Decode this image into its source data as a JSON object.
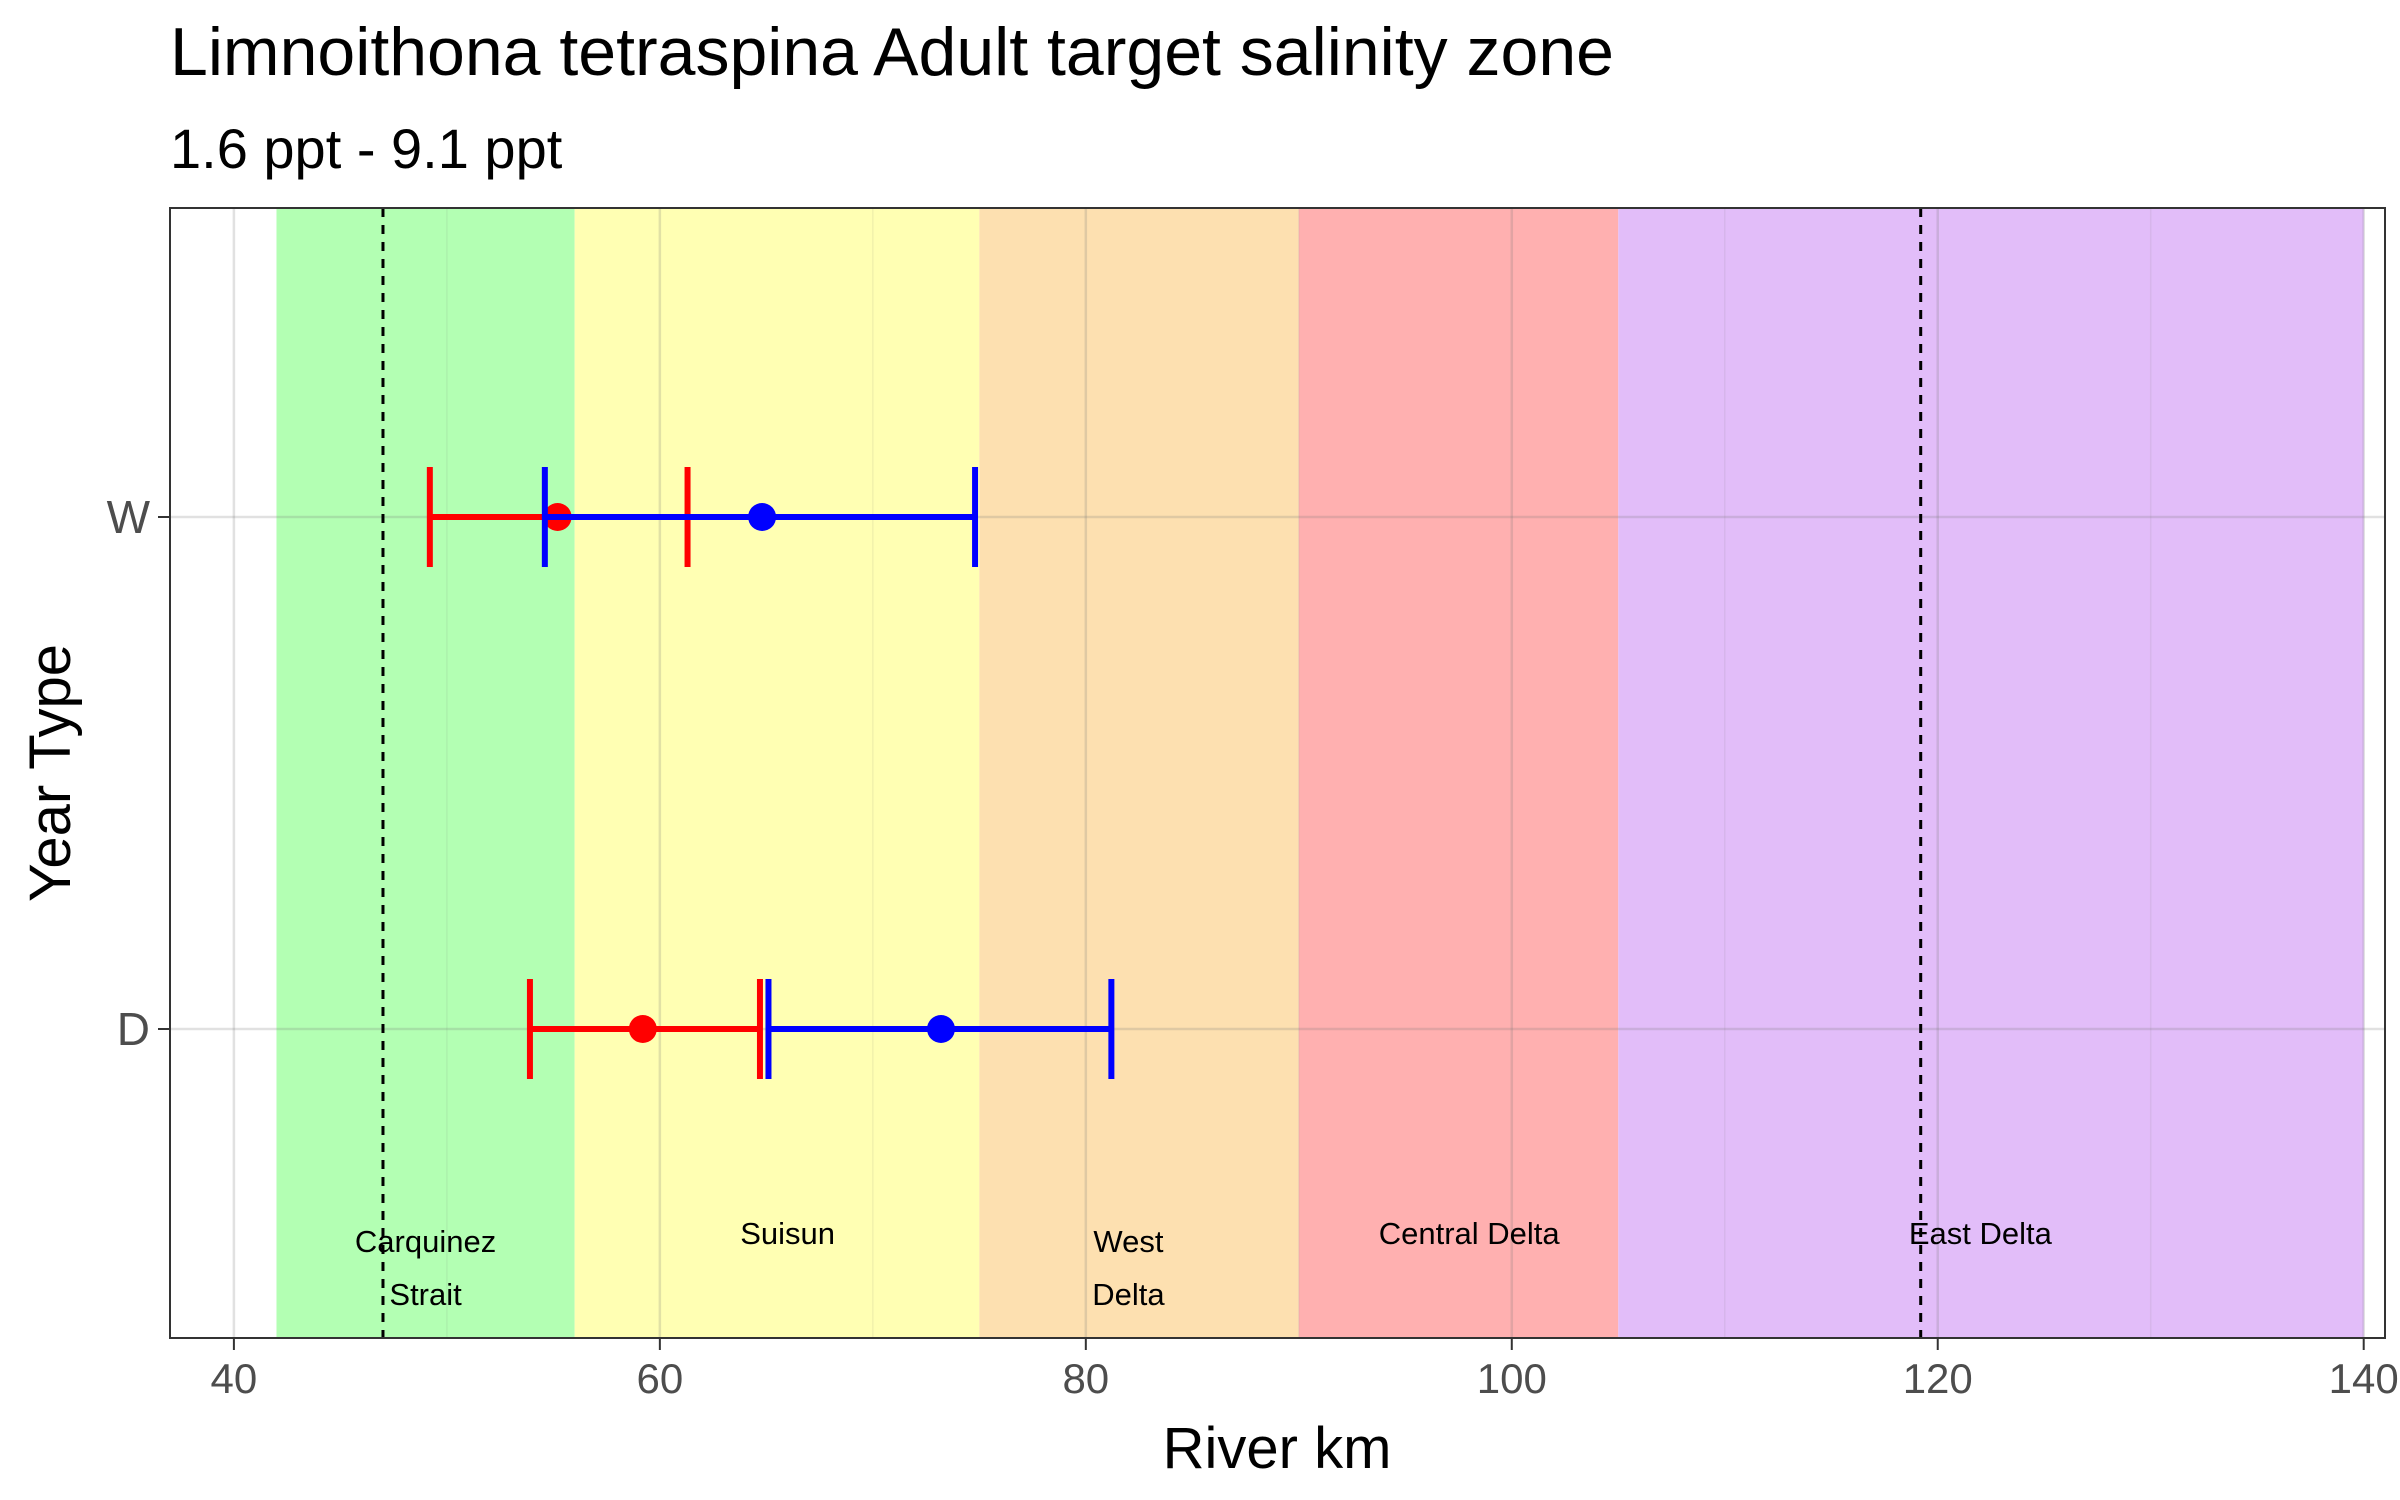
{
  "chart_data": {
    "type": "scatter",
    "title": "Limnoithona tetraspina Adult  target salinity zone",
    "subtitle": "1.6 ppt - 9.1 ppt",
    "xlabel": "River km",
    "ylabel": "Year Type",
    "xlim": [
      37,
      141
    ],
    "x_ticks": [
      40,
      60,
      80,
      100,
      120,
      140
    ],
    "y_categories": [
      "W",
      "D"
    ],
    "grid": true,
    "regions": [
      {
        "name": "Carquinez Strait",
        "label_lines": [
          "Carquinez",
          "Strait"
        ],
        "x_from": 42,
        "x_to": 56,
        "color": "#b3ffb3",
        "label_x": 49
      },
      {
        "name": "Suisun",
        "label_lines": [
          "Suisun"
        ],
        "x_from": 56,
        "x_to": 75,
        "color": "#ffffb3",
        "label_x": 66
      },
      {
        "name": "West Delta",
        "label_lines": [
          "West",
          "Delta"
        ],
        "x_from": 75,
        "x_to": 90,
        "color": "#fde0b0",
        "label_x": 82
      },
      {
        "name": "Central Delta",
        "label_lines": [
          "Central Delta"
        ],
        "x_from": 90,
        "x_to": 105,
        "color": "#ffb0b0",
        "label_x": 98
      },
      {
        "name": "East Delta",
        "label_lines": [
          "East Delta"
        ],
        "x_from": 105,
        "x_to": 140,
        "color": "#e2bdf9",
        "label_x": 122
      }
    ],
    "reference_lines": [
      47,
      119.2
    ],
    "series": [
      {
        "color": "#ff0000",
        "points": [
          {
            "y": "W",
            "x": 55.2,
            "low": 49.2,
            "high": 61.3
          },
          {
            "y": "D",
            "x": 59.2,
            "low": 53.9,
            "high": 64.7
          }
        ]
      },
      {
        "color": "#0000ff",
        "points": [
          {
            "y": "W",
            "x": 64.8,
            "low": 54.6,
            "high": 74.8
          },
          {
            "y": "D",
            "x": 73.2,
            "low": 65.1,
            "high": 81.2
          }
        ]
      }
    ]
  }
}
